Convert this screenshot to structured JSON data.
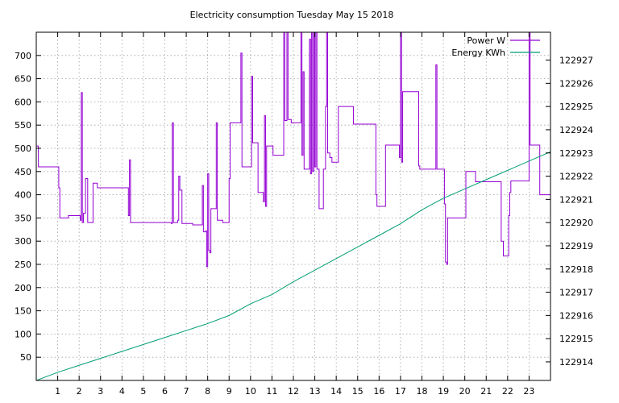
{
  "chart_data": {
    "type": "line",
    "title": "Electricity consumption Tuesday May 15 2018",
    "xlabel": "",
    "ylabel": "",
    "xlim": [
      0,
      24
    ],
    "ylim": [
      0,
      750
    ],
    "y2lim": [
      122913.2,
      122928.2
    ],
    "x_ticks": [
      "1",
      "2",
      "3",
      "4",
      "5",
      "6",
      "7",
      "8",
      "9",
      "10",
      "11",
      "12",
      "13",
      "14",
      "15",
      "16",
      "17",
      "18",
      "19",
      "20",
      "21",
      "22",
      "23"
    ],
    "y_ticks": [
      "50",
      "100",
      "150",
      "200",
      "250",
      "300",
      "350",
      "400",
      "450",
      "500",
      "550",
      "600",
      "650",
      "700"
    ],
    "y2_ticks": [
      "122914",
      "122915",
      "122916",
      "122917",
      "122918",
      "122919",
      "122920",
      "122921",
      "122922",
      "122923",
      "122924",
      "122925",
      "122926",
      "122927"
    ],
    "grid": true,
    "legend_position": "top-right",
    "series": [
      {
        "name": "Power W",
        "axis": "y",
        "color": "#9400d3",
        "step": true,
        "points": [
          [
            0,
            505
          ],
          [
            0.1,
            460
          ],
          [
            1,
            460
          ],
          [
            1.05,
            415
          ],
          [
            1.1,
            350
          ],
          [
            1.4,
            350
          ],
          [
            1.5,
            355
          ],
          [
            2,
            355
          ],
          [
            2.05,
            345
          ],
          [
            2.1,
            620
          ],
          [
            2.15,
            340
          ],
          [
            2.2,
            360
          ],
          [
            2.3,
            435
          ],
          [
            2.4,
            340
          ],
          [
            2.6,
            340
          ],
          [
            2.65,
            425
          ],
          [
            2.85,
            415
          ],
          [
            4.2,
            415
          ],
          [
            4.3,
            355
          ],
          [
            4.35,
            475
          ],
          [
            4.4,
            340
          ],
          [
            5.7,
            340
          ],
          [
            5.8,
            340
          ],
          [
            6.3,
            338
          ],
          [
            6.35,
            555
          ],
          [
            6.4,
            340
          ],
          [
            6.6,
            345
          ],
          [
            6.65,
            440
          ],
          [
            6.7,
            410
          ],
          [
            6.8,
            338
          ],
          [
            7.2,
            338
          ],
          [
            7.3,
            335
          ],
          [
            7.7,
            335
          ],
          [
            7.75,
            420
          ],
          [
            7.8,
            320
          ],
          [
            7.9,
            322
          ],
          [
            7.95,
            245
          ],
          [
            8.0,
            445
          ],
          [
            8.05,
            280
          ],
          [
            8.1,
            275
          ],
          [
            8.15,
            370
          ],
          [
            8.35,
            370
          ],
          [
            8.4,
            555
          ],
          [
            8.45,
            345
          ],
          [
            8.6,
            345
          ],
          [
            8.7,
            340
          ],
          [
            8.95,
            340
          ],
          [
            9.0,
            435
          ],
          [
            9.05,
            555
          ],
          [
            9.5,
            555
          ],
          [
            9.55,
            705
          ],
          [
            9.6,
            460
          ],
          [
            10.0,
            460
          ],
          [
            10.05,
            655
          ],
          [
            10.1,
            512
          ],
          [
            10.3,
            512
          ],
          [
            10.35,
            405
          ],
          [
            10.55,
            405
          ],
          [
            10.6,
            385
          ],
          [
            10.65,
            570
          ],
          [
            10.7,
            375
          ],
          [
            10.75,
            505
          ],
          [
            11.0,
            505
          ],
          [
            11.05,
            485
          ],
          [
            11.5,
            485
          ],
          [
            11.55,
            750
          ],
          [
            11.6,
            560
          ],
          [
            11.7,
            750
          ],
          [
            11.75,
            562
          ],
          [
            11.9,
            555
          ],
          [
            12.3,
            555
          ],
          [
            12.35,
            750
          ],
          [
            12.4,
            485
          ],
          [
            12.45,
            665
          ],
          [
            12.5,
            455
          ],
          [
            12.7,
            455
          ],
          [
            12.75,
            735
          ],
          [
            12.8,
            445
          ],
          [
            12.85,
            750
          ],
          [
            12.9,
            450
          ],
          [
            12.95,
            750
          ],
          [
            13.0,
            460
          ],
          [
            13.05,
            750
          ],
          [
            13.1,
            455
          ],
          [
            13.2,
            370
          ],
          [
            13.35,
            370
          ],
          [
            13.4,
            455
          ],
          [
            13.5,
            590
          ],
          [
            13.55,
            750
          ],
          [
            13.6,
            490
          ],
          [
            13.7,
            480
          ],
          [
            13.8,
            470
          ],
          [
            14.0,
            470
          ],
          [
            14.1,
            590
          ],
          [
            14.4,
            590
          ],
          [
            14.75,
            590
          ],
          [
            14.8,
            552
          ],
          [
            15.8,
            552
          ],
          [
            15.85,
            400
          ],
          [
            15.9,
            375
          ],
          [
            16.25,
            375
          ],
          [
            16.3,
            507
          ],
          [
            16.9,
            507
          ],
          [
            16.95,
            480
          ],
          [
            17.0,
            750
          ],
          [
            17.05,
            470
          ],
          [
            17.1,
            622
          ],
          [
            17.8,
            622
          ],
          [
            17.85,
            462
          ],
          [
            17.9,
            455
          ],
          [
            18.6,
            455
          ],
          [
            18.65,
            680
          ],
          [
            18.7,
            455
          ],
          [
            19.0,
            455
          ],
          [
            19.05,
            380
          ],
          [
            19.1,
            255
          ],
          [
            19.15,
            250
          ],
          [
            19.2,
            350
          ],
          [
            20.0,
            350
          ],
          [
            20.05,
            450
          ],
          [
            20.45,
            450
          ],
          [
            20.5,
            428
          ],
          [
            21.6,
            428
          ],
          [
            21.7,
            300
          ],
          [
            21.8,
            268
          ],
          [
            22.0,
            268
          ],
          [
            22.05,
            355
          ],
          [
            22.1,
            405
          ],
          [
            22.15,
            430
          ],
          [
            22.95,
            430
          ],
          [
            23.0,
            750
          ],
          [
            23.05,
            507
          ],
          [
            23.4,
            507
          ],
          [
            23.5,
            400
          ],
          [
            24,
            400
          ]
        ]
      },
      {
        "name": "Energy KWh",
        "axis": "y2",
        "color": "#009e73",
        "step": false,
        "points": [
          [
            0,
            122913.2
          ],
          [
            1,
            122913.55
          ],
          [
            2,
            122913.85
          ],
          [
            3,
            122914.15
          ],
          [
            4,
            122914.45
          ],
          [
            5,
            122914.75
          ],
          [
            6,
            122915.05
          ],
          [
            7,
            122915.35
          ],
          [
            8,
            122915.65
          ],
          [
            9,
            122916.0
          ],
          [
            10,
            122916.5
          ],
          [
            11,
            122916.9
          ],
          [
            12,
            122917.45
          ],
          [
            13,
            122917.95
          ],
          [
            14,
            122918.45
          ],
          [
            15,
            122918.95
          ],
          [
            16,
            122919.45
          ],
          [
            17,
            122919.95
          ],
          [
            18,
            122920.55
          ],
          [
            19,
            122921.05
          ],
          [
            20,
            122921.45
          ],
          [
            21,
            122921.85
          ],
          [
            22,
            122922.25
          ],
          [
            23,
            122922.65
          ],
          [
            24,
            122923.05
          ]
        ]
      }
    ]
  }
}
